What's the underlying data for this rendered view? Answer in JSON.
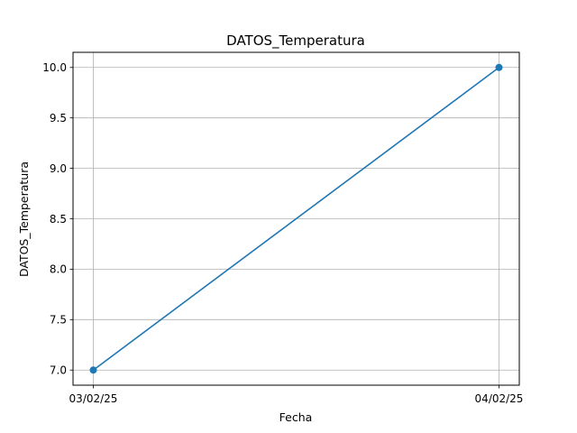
{
  "chart_data": {
    "type": "line",
    "title": "DATOS_Temperatura",
    "xlabel": "Fecha",
    "ylabel": "DATOS_Temperatura",
    "categories": [
      "03/02/25",
      "04/02/25"
    ],
    "series": [
      {
        "values": [
          7.0,
          10.0
        ],
        "color": "#1f77b4",
        "marker": "circle"
      }
    ],
    "yticks": [
      "7.0",
      "7.5",
      "8.0",
      "8.5",
      "9.0",
      "9.5",
      "10.0"
    ],
    "ylim": [
      6.85,
      10.15
    ],
    "grid": true
  }
}
